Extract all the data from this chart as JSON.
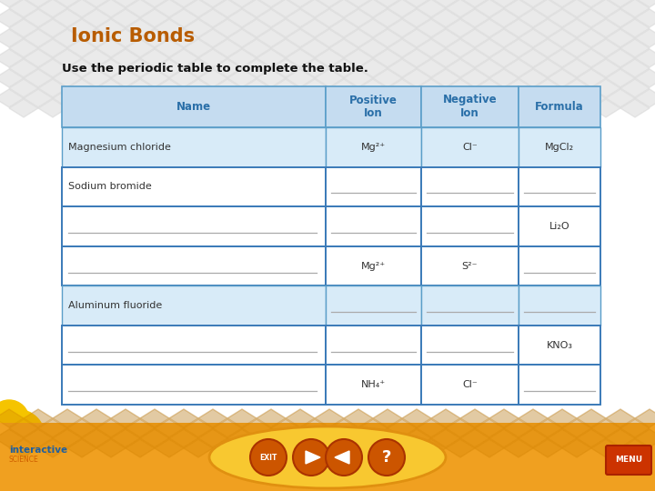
{
  "title": "Ionic Bonds",
  "subtitle": "Use the periodic table to complete the table.",
  "title_color": "#B85C00",
  "subtitle_color": "#111111",
  "bg_color": "#FFFFFF",
  "header_bg": "#C5DCF0",
  "row_bg_light": "#D8EBF8",
  "row_bg_white": "#FFFFFF",
  "table_border_color": "#5B9EC9",
  "header_text_color": "#2A6FA8",
  "col_labels": [
    "Name",
    "Positive\nIon",
    "Negative\nIon",
    "Formula"
  ],
  "rows": [
    {
      "name": "Magnesium chloride",
      "pos": "Mg²⁺",
      "neg": "Cl⁻",
      "formula": "MgCl₂",
      "has_line_name": false,
      "has_line_pos": false,
      "has_line_neg": false,
      "has_line_formula": false,
      "bg": "light",
      "border_highlight": false
    },
    {
      "name": "Sodium bromide",
      "pos": "",
      "neg": "",
      "formula": "",
      "has_line_name": false,
      "has_line_pos": true,
      "has_line_neg": true,
      "has_line_formula": true,
      "bg": "white",
      "border_highlight": true
    },
    {
      "name": "",
      "pos": "",
      "neg": "",
      "formula": "Li₂O",
      "has_line_name": true,
      "has_line_pos": true,
      "has_line_neg": true,
      "has_line_formula": false,
      "bg": "white",
      "border_highlight": true
    },
    {
      "name": "",
      "pos": "Mg²⁺",
      "neg": "S²⁻",
      "formula": "",
      "has_line_name": true,
      "has_line_pos": false,
      "has_line_neg": false,
      "has_line_formula": true,
      "bg": "white",
      "border_highlight": true
    },
    {
      "name": "Aluminum fluoride",
      "pos": "",
      "neg": "",
      "formula": "",
      "has_line_name": false,
      "has_line_pos": true,
      "has_line_neg": true,
      "has_line_formula": true,
      "bg": "light",
      "border_highlight": false
    },
    {
      "name": "",
      "pos": "",
      "neg": "",
      "formula": "KNO₃",
      "has_line_name": true,
      "has_line_pos": true,
      "has_line_neg": true,
      "has_line_formula": false,
      "bg": "white",
      "border_highlight": true
    },
    {
      "name": "",
      "pos": "NH₄⁺",
      "neg": "Cl⁻",
      "formula": "",
      "has_line_name": true,
      "has_line_pos": false,
      "has_line_neg": false,
      "has_line_formula": true,
      "bg": "white",
      "border_highlight": true
    }
  ],
  "diamond_color": "#CCCCCC",
  "diamond_alpha": 0.4,
  "circle_data": [
    [
      18,
      58,
      32,
      "#F5C400"
    ],
    [
      10,
      78,
      22,
      "#F5C400"
    ],
    [
      62,
      38,
      18,
      "#F07020"
    ],
    [
      82,
      32,
      18,
      "#F07020"
    ],
    [
      102,
      32,
      18,
      "#F07020"
    ],
    [
      122,
      34,
      16,
      "#F07020"
    ]
  ],
  "bottom_bar_color": "#F0A020",
  "bottom_ellipse_color": "#F8C830",
  "bottom_ellipse_border": "#E09010",
  "exit_btn_color": "#E0E0E0",
  "exit_btn_border": "#BBBBBB",
  "arrow_color": "#D06000",
  "question_color": "#E07010",
  "menu_btn_color": "#CC3300",
  "menu_btn_border": "#AA2200",
  "interactive_color": "#2060A0",
  "science_color": "#D06000"
}
